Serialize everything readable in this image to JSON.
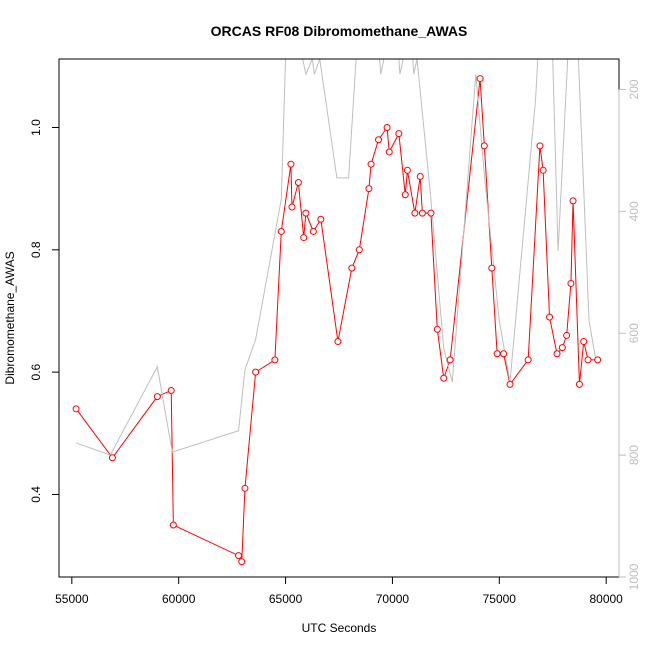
{
  "chart_data": {
    "type": "line",
    "title": "ORCAS RF08 Dibromomethane_AWAS",
    "xlabel": "UTC Seconds",
    "ylabel": "Dibromomethane_AWAS",
    "xlim": [
      54400,
      80600
    ],
    "ylim": [
      0.265,
      1.112
    ],
    "x_ticks": [
      55000,
      60000,
      65000,
      70000,
      75000,
      80000
    ],
    "x_tick_labels": [
      "55000",
      "60000",
      "65000",
      "70000",
      "75000",
      "80000"
    ],
    "y_ticks": [
      0.4,
      0.6,
      0.8,
      1.0
    ],
    "y_tick_labels": [
      "0.4",
      "0.6",
      "0.8",
      "1.0"
    ],
    "y2_lim": [
      1000,
      150
    ],
    "y2_ticks": [
      200,
      400,
      600,
      800,
      1000
    ],
    "y2_tick_labels": [
      "200",
      "400",
      "600",
      "800",
      "1000"
    ],
    "grid": false,
    "series": [
      {
        "color": "#ff0000",
        "marker": "open-circle",
        "axis": "left",
        "points": [
          [
            55200,
            0.54
          ],
          [
            56900,
            0.46
          ],
          [
            59000,
            0.56
          ],
          [
            59650,
            0.57
          ],
          [
            59750,
            0.35
          ],
          [
            62800,
            0.3
          ],
          [
            62950,
            0.29
          ],
          [
            63100,
            0.41
          ],
          [
            63600,
            0.6
          ],
          [
            64500,
            0.62
          ],
          [
            64800,
            0.83
          ],
          [
            65250,
            0.94
          ],
          [
            65300,
            0.87
          ],
          [
            65600,
            0.91
          ],
          [
            65850,
            0.82
          ],
          [
            65950,
            0.86
          ],
          [
            66300,
            0.83
          ],
          [
            66650,
            0.85
          ],
          [
            67450,
            0.65
          ],
          [
            68100,
            0.77
          ],
          [
            68450,
            0.8
          ],
          [
            68900,
            0.9
          ],
          [
            69000,
            0.94
          ],
          [
            69350,
            0.98
          ],
          [
            69750,
            1.0
          ],
          [
            69850,
            0.96
          ],
          [
            70300,
            0.99
          ],
          [
            70600,
            0.89
          ],
          [
            70700,
            0.93
          ],
          [
            71050,
            0.86
          ],
          [
            71300,
            0.92
          ],
          [
            71400,
            0.86
          ],
          [
            71800,
            0.86
          ],
          [
            72100,
            0.67
          ],
          [
            72400,
            0.59
          ],
          [
            72700,
            0.62
          ],
          [
            74100,
            1.08
          ],
          [
            74300,
            0.97
          ],
          [
            74650,
            0.77
          ],
          [
            74900,
            0.63
          ],
          [
            75200,
            0.63
          ],
          [
            75500,
            0.58
          ],
          [
            76350,
            0.62
          ],
          [
            76900,
            0.97
          ],
          [
            77050,
            0.93
          ],
          [
            77350,
            0.69
          ],
          [
            77700,
            0.63
          ],
          [
            77950,
            0.64
          ],
          [
            78150,
            0.66
          ],
          [
            78350,
            0.745
          ],
          [
            78450,
            0.88
          ],
          [
            78750,
            0.58
          ],
          [
            78950,
            0.65
          ],
          [
            79150,
            0.62
          ],
          [
            79600,
            0.62
          ]
        ]
      },
      {
        "color": "#bebebe",
        "marker": "none",
        "axis": "right",
        "points": [
          [
            55200,
            780
          ],
          [
            56800,
            800
          ],
          [
            59000,
            655
          ],
          [
            59700,
            795
          ],
          [
            62800,
            760
          ],
          [
            63100,
            660
          ],
          [
            63600,
            610
          ],
          [
            64800,
            380
          ],
          [
            65000,
            150
          ],
          [
            65800,
            150
          ],
          [
            65950,
            175
          ],
          [
            66250,
            150
          ],
          [
            66350,
            175
          ],
          [
            66600,
            150
          ],
          [
            67400,
            345
          ],
          [
            67550,
            345
          ],
          [
            67850,
            345
          ],
          [
            67950,
            345
          ],
          [
            68300,
            150
          ],
          [
            69400,
            150
          ],
          [
            69450,
            175
          ],
          [
            69600,
            150
          ],
          [
            70300,
            150
          ],
          [
            70350,
            175
          ],
          [
            70500,
            150
          ],
          [
            70950,
            150
          ],
          [
            71000,
            175
          ],
          [
            71150,
            150
          ],
          [
            71800,
            380
          ],
          [
            72400,
            625
          ],
          [
            72800,
            680
          ],
          [
            73900,
            175
          ],
          [
            74300,
            340
          ],
          [
            75000,
            580
          ],
          [
            75500,
            680
          ],
          [
            76700,
            215
          ],
          [
            76800,
            150
          ],
          [
            77500,
            150
          ],
          [
            77750,
            465
          ],
          [
            78200,
            150
          ],
          [
            78700,
            150
          ],
          [
            79200,
            580
          ],
          [
            79500,
            640
          ]
        ]
      }
    ]
  }
}
